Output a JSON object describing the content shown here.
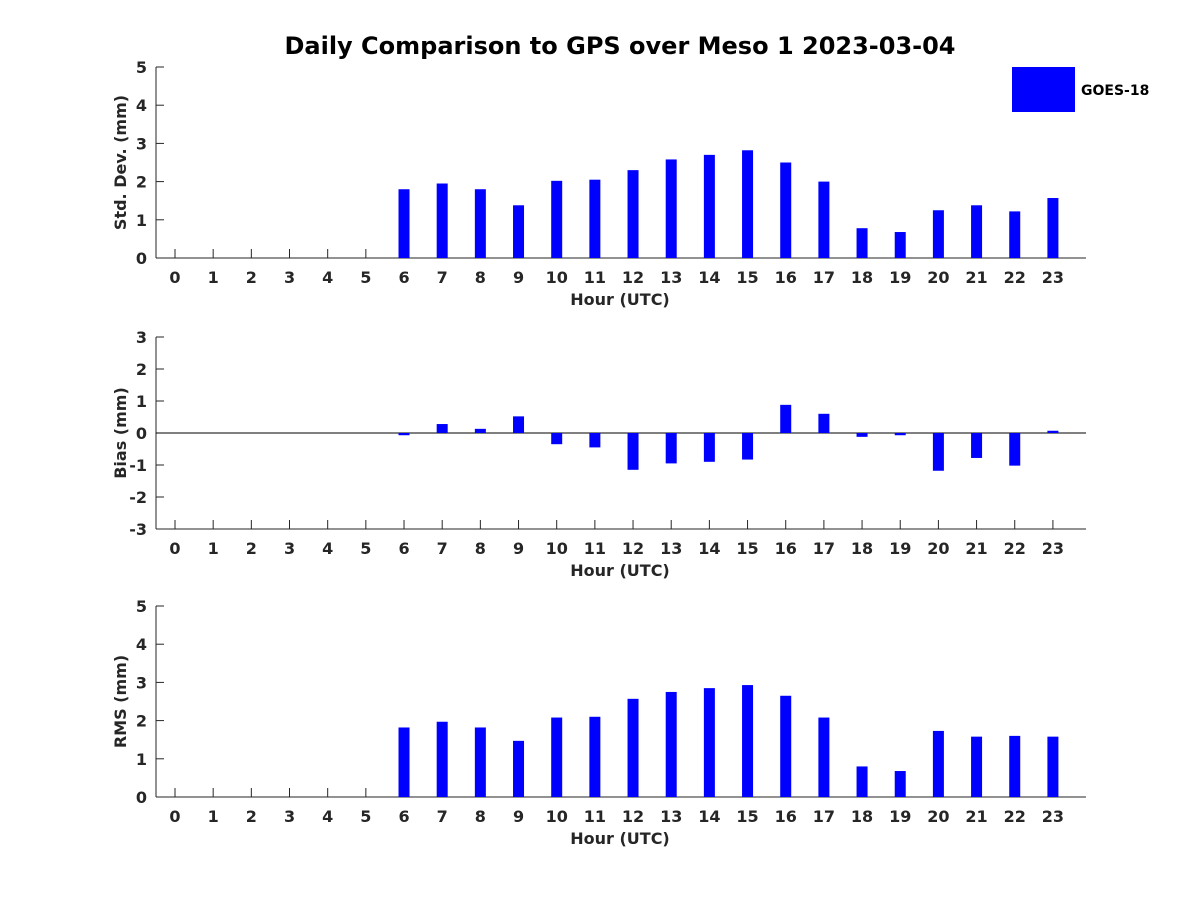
{
  "title": "Daily Comparison to GPS over Meso 1 2023-03-04",
  "legend": {
    "label": "GOES-18",
    "color": "#0000ff"
  },
  "chart_data": [
    {
      "type": "bar",
      "categories": [
        "0",
        "1",
        "2",
        "3",
        "4",
        "5",
        "6",
        "7",
        "8",
        "9",
        "10",
        "11",
        "12",
        "13",
        "14",
        "15",
        "16",
        "17",
        "18",
        "19",
        "20",
        "21",
        "22",
        "23"
      ],
      "series": [
        {
          "name": "GOES-18",
          "values": [
            null,
            null,
            null,
            null,
            null,
            null,
            1.8,
            1.95,
            1.8,
            1.38,
            2.02,
            2.05,
            2.3,
            2.58,
            2.7,
            2.82,
            2.5,
            2.0,
            0.78,
            0.68,
            1.25,
            1.38,
            1.22,
            1.57
          ]
        }
      ],
      "xlabel": "Hour (UTC)",
      "ylabel": "Std. Dev. (mm)",
      "ylim": [
        0,
        5
      ],
      "yticks": [
        "0",
        "1",
        "2",
        "3",
        "4",
        "5"
      ],
      "grid": false,
      "legend_position": "top-right"
    },
    {
      "type": "bar",
      "categories": [
        "0",
        "1",
        "2",
        "3",
        "4",
        "5",
        "6",
        "7",
        "8",
        "9",
        "10",
        "11",
        "12",
        "13",
        "14",
        "15",
        "16",
        "17",
        "18",
        "19",
        "20",
        "21",
        "22",
        "23"
      ],
      "series": [
        {
          "name": "GOES-18",
          "values": [
            null,
            null,
            null,
            null,
            null,
            null,
            -0.07,
            0.28,
            0.13,
            0.52,
            -0.35,
            -0.45,
            -1.15,
            -0.95,
            -0.9,
            -0.83,
            0.88,
            0.6,
            -0.12,
            -0.07,
            -1.18,
            -0.78,
            -1.02,
            0.07
          ]
        }
      ],
      "xlabel": "Hour (UTC)",
      "ylabel": "Bias (mm)",
      "ylim": [
        -3,
        3
      ],
      "yticks": [
        "-3",
        "-2",
        "-1",
        "0",
        "1",
        "2",
        "3"
      ],
      "zero_line": true,
      "grid": false
    },
    {
      "type": "bar",
      "categories": [
        "0",
        "1",
        "2",
        "3",
        "4",
        "5",
        "6",
        "7",
        "8",
        "9",
        "10",
        "11",
        "12",
        "13",
        "14",
        "15",
        "16",
        "17",
        "18",
        "19",
        "20",
        "21",
        "22",
        "23"
      ],
      "series": [
        {
          "name": "GOES-18",
          "values": [
            null,
            null,
            null,
            null,
            null,
            null,
            1.82,
            1.97,
            1.82,
            1.47,
            2.08,
            2.1,
            2.57,
            2.75,
            2.85,
            2.93,
            2.65,
            2.08,
            0.8,
            0.68,
            1.73,
            1.58,
            1.6,
            1.58
          ]
        }
      ],
      "xlabel": "Hour (UTC)",
      "ylabel": "RMS (mm)",
      "ylim": [
        0,
        5
      ],
      "yticks": [
        "0",
        "1",
        "2",
        "3",
        "4",
        "5"
      ],
      "grid": false
    }
  ]
}
